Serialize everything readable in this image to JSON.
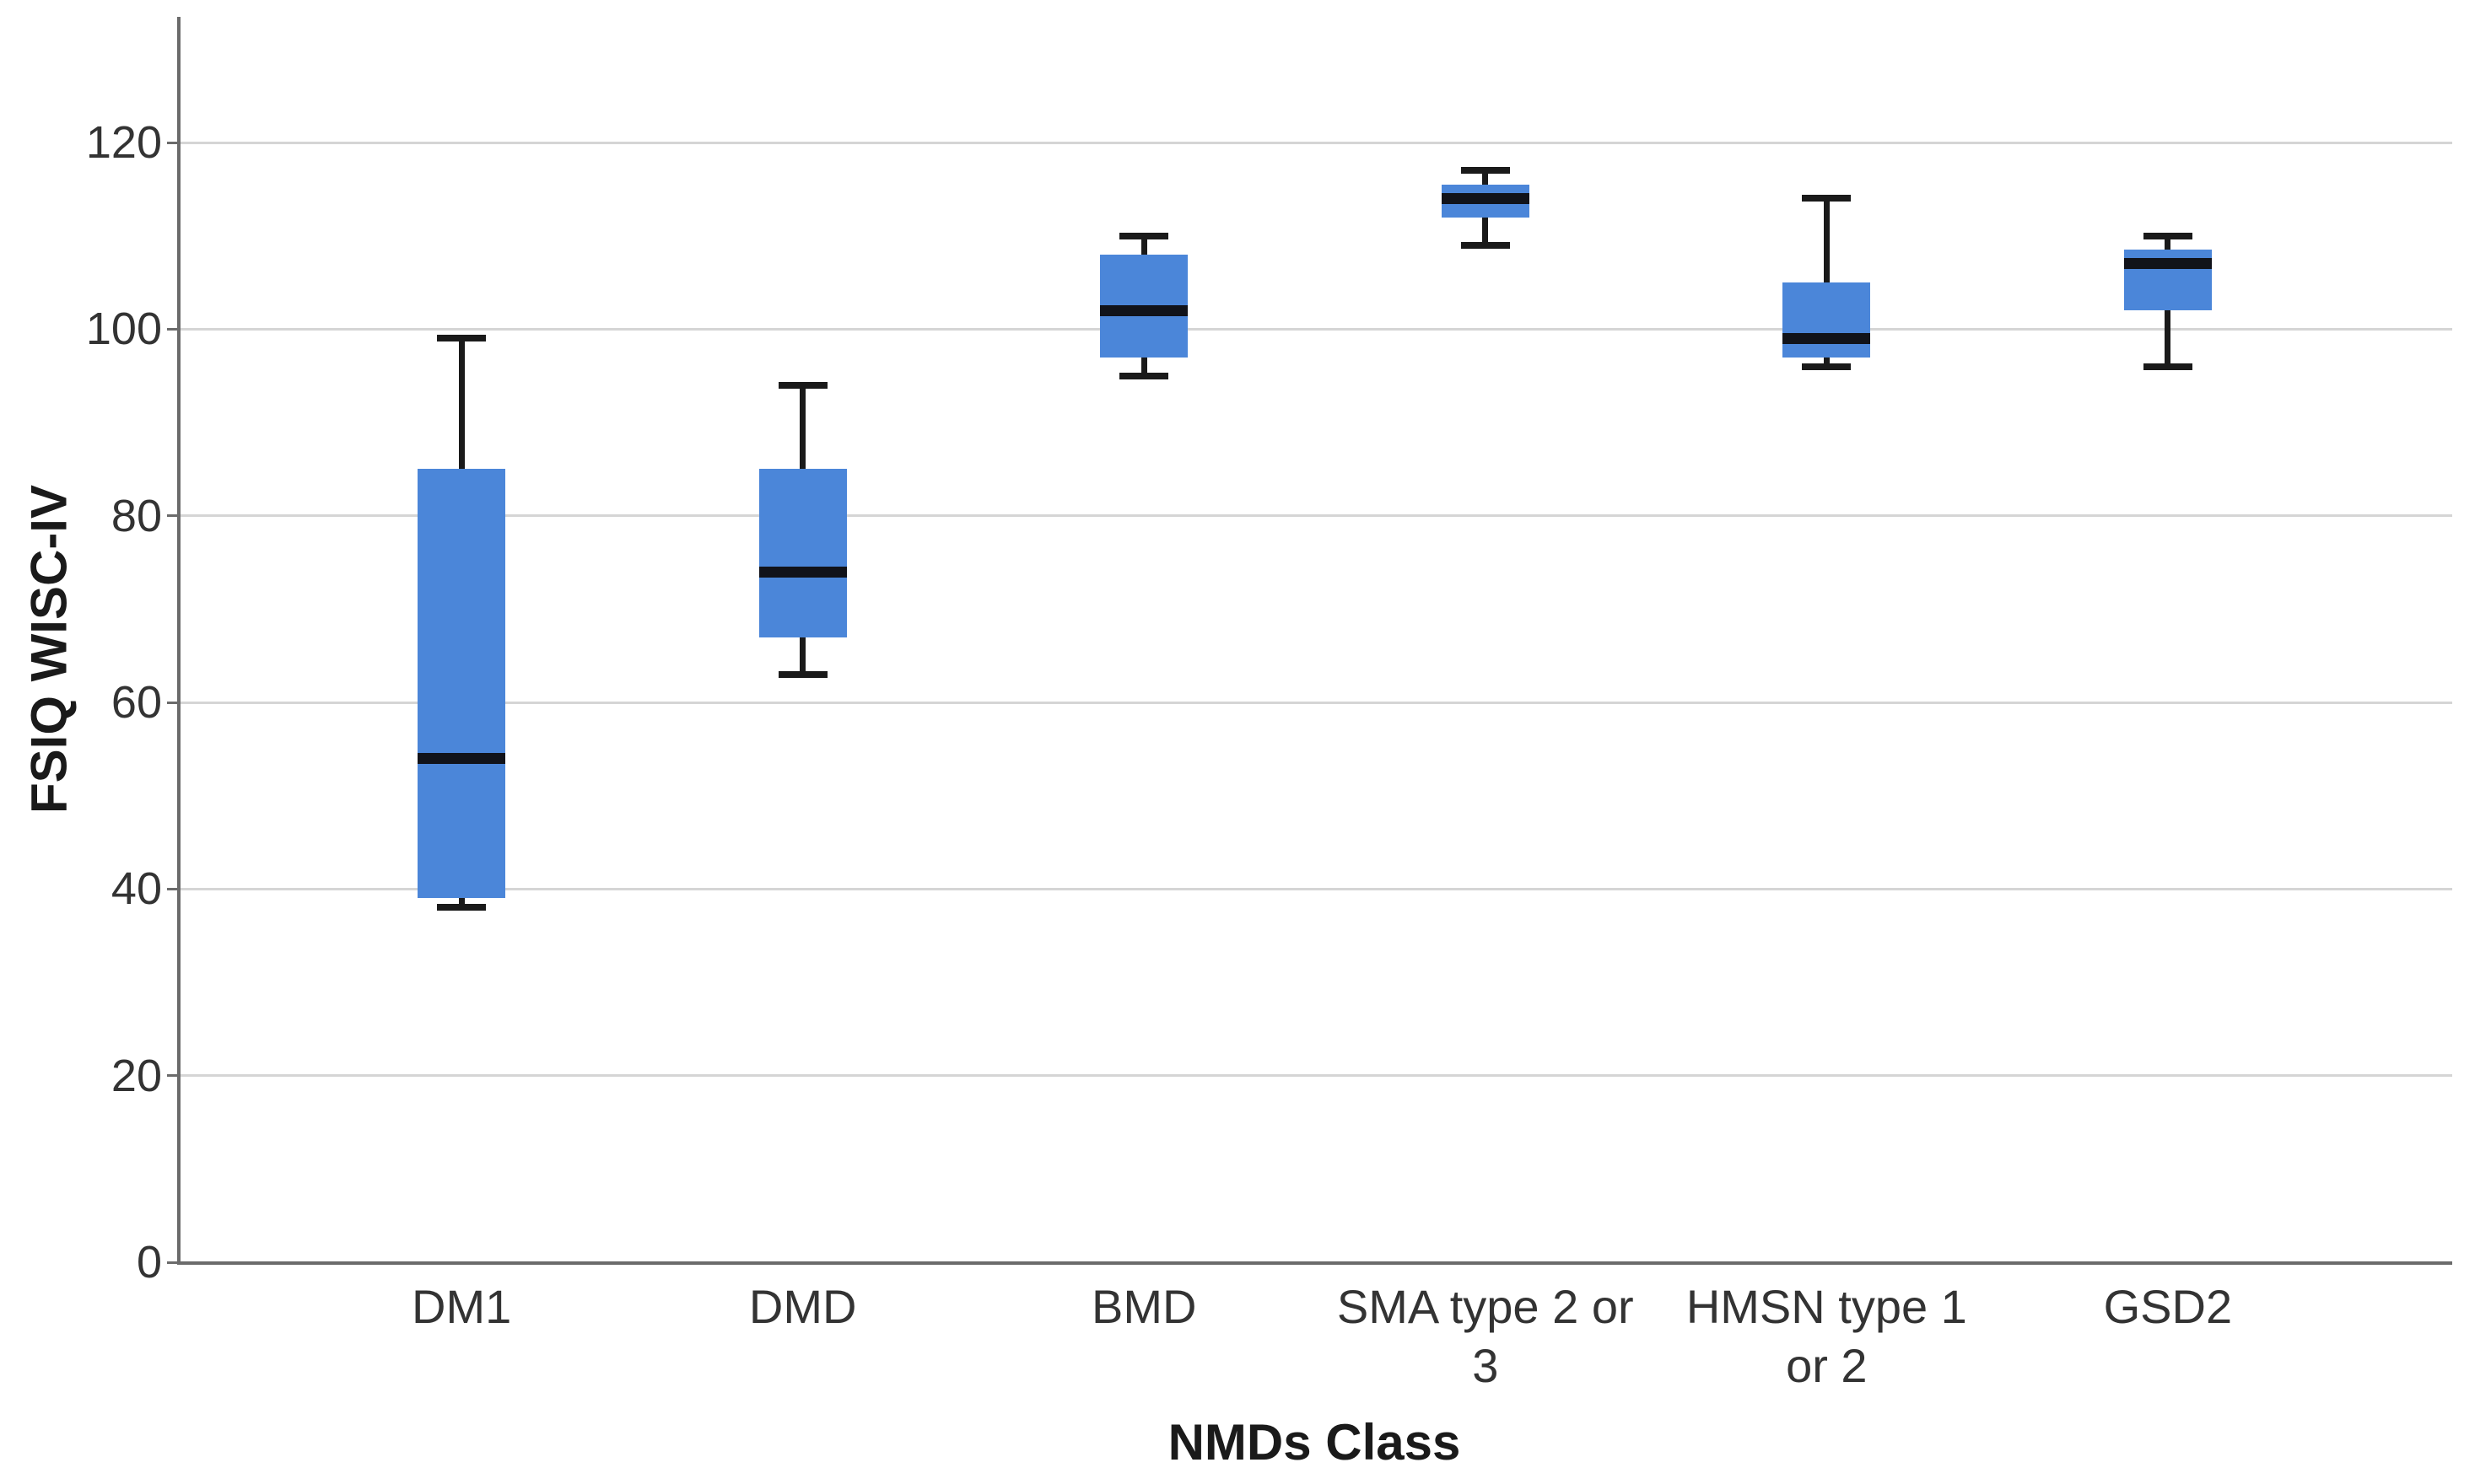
{
  "chart_data": {
    "type": "box",
    "title": "",
    "xlabel": "NMDs Class",
    "ylabel": "FSIQ WISC-IV",
    "categories": [
      "DM1",
      "DMD",
      "BMD",
      "SMA type 2 or 3",
      "HMSN type 1 or 2",
      "GSD2"
    ],
    "category_label_lines": [
      [
        "DM1"
      ],
      [
        "DMD"
      ],
      [
        "BMD"
      ],
      [
        "SMA type 2 or",
        "3"
      ],
      [
        "HMSN type 1",
        "or 2"
      ],
      [
        "GSD2"
      ]
    ],
    "y_ticks": [
      0,
      20,
      40,
      60,
      80,
      100,
      120
    ],
    "ylim": [
      0,
      133.5
    ],
    "grid": "horizontal",
    "legend": "none",
    "boxes": [
      {
        "category": "DM1",
        "whisker_low": 38,
        "q1": 39,
        "median": 54,
        "q3": 85,
        "whisker_high": 99
      },
      {
        "category": "DMD",
        "whisker_low": 63,
        "q1": 67,
        "median": 74,
        "q3": 85,
        "whisker_high": 94
      },
      {
        "category": "BMD",
        "whisker_low": 95,
        "q1": 97,
        "median": 102,
        "q3": 108,
        "whisker_high": 110
      },
      {
        "category": "SMA type 2 or 3",
        "whisker_low": 109,
        "q1": 112,
        "median": 114,
        "q3": 115.5,
        "whisker_high": 117
      },
      {
        "category": "HMSN type 1 or 2",
        "whisker_low": 96,
        "q1": 97,
        "median": 99,
        "q3": 105,
        "whisker_high": 114
      },
      {
        "category": "GSD2",
        "whisker_low": 96,
        "q1": 102,
        "median": 107,
        "q3": 108.5,
        "whisker_high": 110
      }
    ],
    "colors": {
      "box_fill": "#4b86d9",
      "median": "#11131a",
      "whisker": "#1a1a1a",
      "gridline": "#d5d5d5",
      "axis_line": "#6b6b6b",
      "tick_text": "#333333",
      "title_text": "#1a1a1a"
    }
  }
}
